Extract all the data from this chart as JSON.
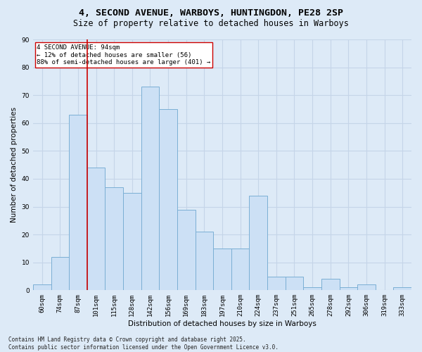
{
  "title": "4, SECOND AVENUE, WARBOYS, HUNTINGDON, PE28 2SP",
  "subtitle": "Size of property relative to detached houses in Warboys",
  "xlabel": "Distribution of detached houses by size in Warboys",
  "ylabel": "Number of detached properties",
  "categories": [
    "60sqm",
    "74sqm",
    "87sqm",
    "101sqm",
    "115sqm",
    "128sqm",
    "142sqm",
    "156sqm",
    "169sqm",
    "183sqm",
    "197sqm",
    "210sqm",
    "224sqm",
    "237sqm",
    "251sqm",
    "265sqm",
    "278sqm",
    "292sqm",
    "306sqm",
    "319sqm",
    "333sqm"
  ],
  "values": [
    2,
    12,
    63,
    44,
    37,
    35,
    73,
    65,
    29,
    21,
    15,
    15,
    34,
    5,
    5,
    1,
    4,
    1,
    2,
    0,
    1
  ],
  "bar_color": "#cce0f5",
  "bar_edge_color": "#7bafd4",
  "background_color": "#ddeaf7",
  "grid_color": "#c5d5e8",
  "vline_color": "#cc0000",
  "vline_position": 2.5,
  "annotation_text": "4 SECOND AVENUE: 94sqm\n← 12% of detached houses are smaller (56)\n88% of semi-detached houses are larger (401) →",
  "annotation_box_color": "#ffffff",
  "annotation_box_edge": "#cc0000",
  "footer": "Contains HM Land Registry data © Crown copyright and database right 2025.\nContains public sector information licensed under the Open Government Licence v3.0.",
  "ylim": [
    0,
    90
  ],
  "yticks": [
    0,
    10,
    20,
    30,
    40,
    50,
    60,
    70,
    80,
    90
  ],
  "title_fontsize": 9.5,
  "subtitle_fontsize": 8.5,
  "xlabel_fontsize": 7.5,
  "ylabel_fontsize": 7.5,
  "tick_fontsize": 6.5,
  "annotation_fontsize": 6.5,
  "footer_fontsize": 5.5
}
